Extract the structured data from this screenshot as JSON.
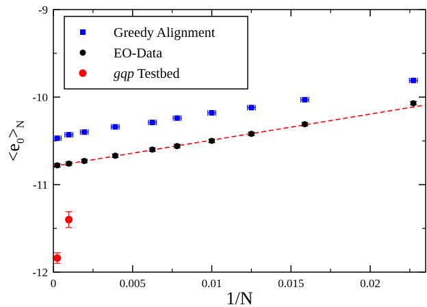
{
  "chart_data": {
    "type": "scatter",
    "xlabel": "1/N",
    "ylabel": "<e0>N",
    "xlim": [
      0,
      0.0235
    ],
    "ylim": [
      -12,
      -9
    ],
    "x_ticks": [
      0,
      0.005,
      0.01,
      0.015,
      0.02
    ],
    "x_tick_labels": [
      "0",
      "0.005",
      "0.01",
      "0.015",
      "0.02"
    ],
    "y_ticks": [
      -12,
      -11,
      -10,
      -9
    ],
    "y_tick_labels": [
      "-12",
      "-11",
      "-10",
      "-9"
    ],
    "legend_position": "top-left",
    "series": [
      {
        "name": "Greedy Alignment",
        "marker": "square",
        "color": "#0000ff",
        "x": [
          0.000244,
          0.000977,
          0.001953,
          0.003906,
          0.00625,
          0.007813,
          0.01,
          0.0125,
          0.015873,
          0.022727
        ],
        "y": [
          -10.47,
          -10.43,
          -10.4,
          -10.34,
          -10.29,
          -10.24,
          -10.18,
          -10.12,
          -10.03,
          -9.81
        ],
        "xerr": [
          0.00025,
          0.00025,
          0.00025,
          0.00025,
          0.00025,
          0.00025,
          0.00025,
          0.00025,
          0.00025,
          0.00025
        ]
      },
      {
        "name": "EO-Data",
        "marker": "circle",
        "color": "#000000",
        "x": [
          0.000244,
          0.000977,
          0.001953,
          0.003906,
          0.00625,
          0.007813,
          0.01,
          0.0125,
          0.015873,
          0.022727
        ],
        "y": [
          -10.78,
          -10.76,
          -10.73,
          -10.67,
          -10.6,
          -10.56,
          -10.5,
          -10.42,
          -10.31,
          -10.07
        ],
        "yerr": [
          0.02,
          0.02,
          0.02,
          0.02,
          0.02,
          0.02,
          0.02,
          0.02,
          0.02,
          0.02
        ]
      },
      {
        "name": "gqp Testbed",
        "name_italic_part": "gqp",
        "name_rest": " Testbed",
        "marker": "circle",
        "color": "#ff0000",
        "x": [
          0.000244,
          0.000977
        ],
        "y": [
          -11.84,
          -11.4
        ],
        "yerr": [
          0.06,
          0.09
        ]
      }
    ],
    "fit_line": {
      "style": "dashed",
      "color": "#ff0000",
      "x": [
        0,
        0.0235
      ],
      "y": [
        -10.79,
        -10.09
      ]
    }
  }
}
